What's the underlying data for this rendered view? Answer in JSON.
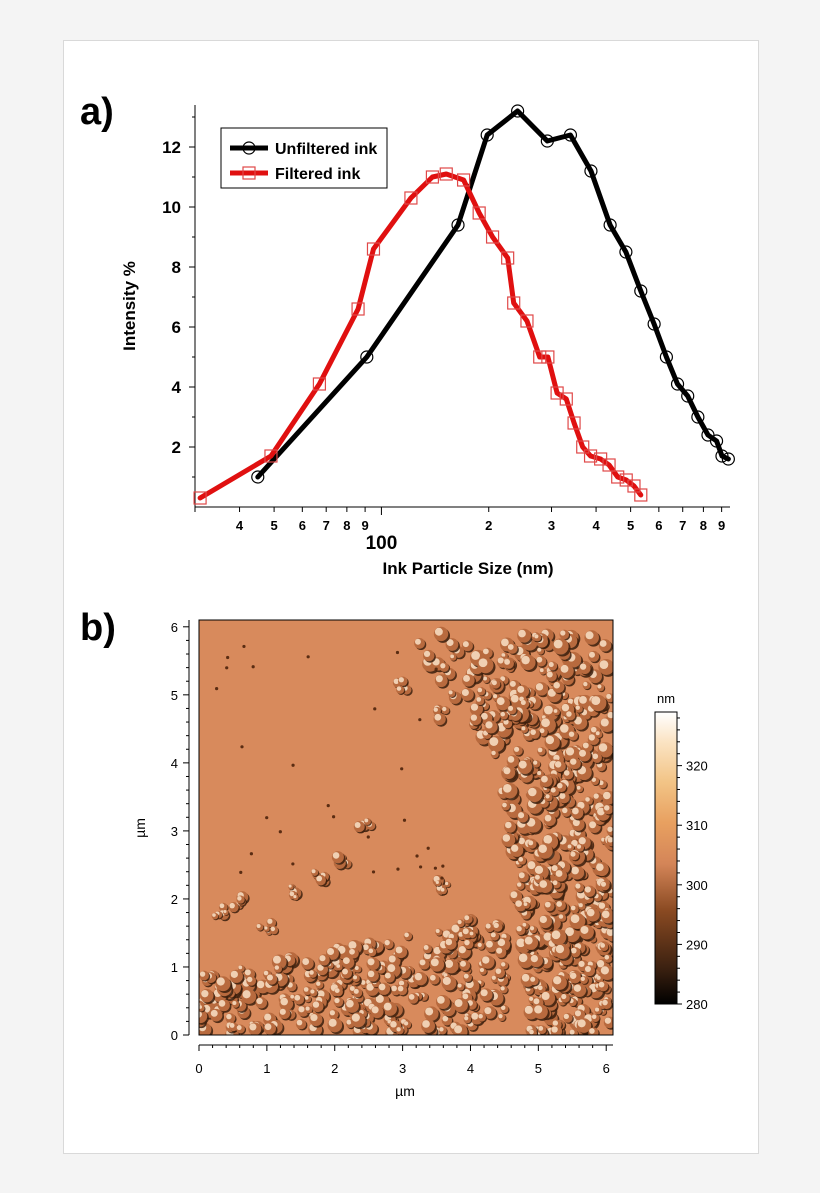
{
  "figure": {
    "panel_a_label": "a)",
    "panel_b_label": "b)"
  },
  "chart_data": [
    {
      "type": "line",
      "xscale": "log",
      "xlabel": "Ink Particle Size (nm)",
      "ylabel": "Intensity %",
      "xlim": [
        30,
        950
      ],
      "ylim": [
        0,
        13.4
      ],
      "x_tick_labels": [
        {
          "value": 40,
          "label": "4"
        },
        {
          "value": 50,
          "label": "5"
        },
        {
          "value": 60,
          "label": "6"
        },
        {
          "value": 70,
          "label": "7"
        },
        {
          "value": 80,
          "label": "8"
        },
        {
          "value": 90,
          "label": "9"
        },
        {
          "value": 100,
          "label": "100"
        },
        {
          "value": 200,
          "label": "2"
        },
        {
          "value": 300,
          "label": "3"
        },
        {
          "value": 400,
          "label": "4"
        },
        {
          "value": 500,
          "label": "5"
        },
        {
          "value": 600,
          "label": "6"
        },
        {
          "value": 700,
          "label": "7"
        },
        {
          "value": 800,
          "label": "8"
        },
        {
          "value": 900,
          "label": "9"
        }
      ],
      "y_tick_labels": [
        {
          "value": 2,
          "label": "2"
        },
        {
          "value": 4,
          "label": "4"
        },
        {
          "value": 6,
          "label": "6"
        },
        {
          "value": 8,
          "label": "8"
        },
        {
          "value": 10,
          "label": "10"
        },
        {
          "value": 12,
          "label": "12"
        }
      ],
      "legend_position": "top-left",
      "series": [
        {
          "name": "Unfiltered ink",
          "color": "#000000",
          "marker": "circle",
          "points": [
            [
              45,
              1.0
            ],
            [
              91,
              5.0
            ],
            [
              164,
              9.4
            ],
            [
              198,
              12.4
            ],
            [
              241,
              13.2
            ],
            [
              292,
              12.2
            ],
            [
              339,
              12.4
            ],
            [
              387,
              11.2
            ],
            [
              438,
              9.4
            ],
            [
              485,
              8.5
            ],
            [
              534,
              7.2
            ],
            [
              582,
              6.1
            ],
            [
              630,
              5.0
            ],
            [
              677,
              4.1
            ],
            [
              723,
              3.7
            ],
            [
              772,
              3.0
            ],
            [
              824,
              2.4
            ],
            [
              871,
              2.2
            ],
            [
              902,
              1.7
            ],
            [
              940,
              1.6
            ]
          ]
        },
        {
          "name": "Filtered ink",
          "color": "#e01010",
          "marker": "square",
          "points": [
            [
              31,
              0.3
            ],
            [
              49,
              1.7
            ],
            [
              67,
              4.1
            ],
            [
              86,
              6.6
            ],
            [
              95,
              8.6
            ],
            [
              121,
              10.3
            ],
            [
              139,
              11.0
            ],
            [
              152,
              11.1
            ],
            [
              170,
              10.9
            ],
            [
              188,
              9.8
            ],
            [
              205,
              9.0
            ],
            [
              226,
              8.3
            ],
            [
              235,
              6.8
            ],
            [
              256,
              6.2
            ],
            [
              278,
              5.0
            ],
            [
              293,
              5.0
            ],
            [
              311,
              3.8
            ],
            [
              330,
              3.6
            ],
            [
              347,
              2.8
            ],
            [
              367,
              2.0
            ],
            [
              386,
              1.7
            ],
            [
              412,
              1.6
            ],
            [
              435,
              1.4
            ],
            [
              460,
              1.0
            ],
            [
              486,
              0.9
            ],
            [
              511,
              0.7
            ],
            [
              534,
              0.4
            ]
          ]
        }
      ]
    },
    {
      "type": "heatmap",
      "xlabel": "µm",
      "ylabel": "µm",
      "xlim": [
        0,
        6.1
      ],
      "ylim": [
        0,
        6.1
      ],
      "x_tick_labels": [
        "0",
        "1",
        "2",
        "3",
        "4",
        "5",
        "6"
      ],
      "y_tick_labels": [
        "0",
        "1",
        "2",
        "3",
        "4",
        "5",
        "6"
      ],
      "colorbar": {
        "unit": "nm",
        "min": 280,
        "max": 329,
        "ticks": [
          "280",
          "290",
          "300",
          "310",
          "320"
        ],
        "stops": [
          "#000000",
          "#3a2010",
          "#8a4a22",
          "#d48558",
          "#e8a060",
          "#f2c486",
          "#fbe4c4",
          "#ffffff"
        ]
      }
    }
  ]
}
